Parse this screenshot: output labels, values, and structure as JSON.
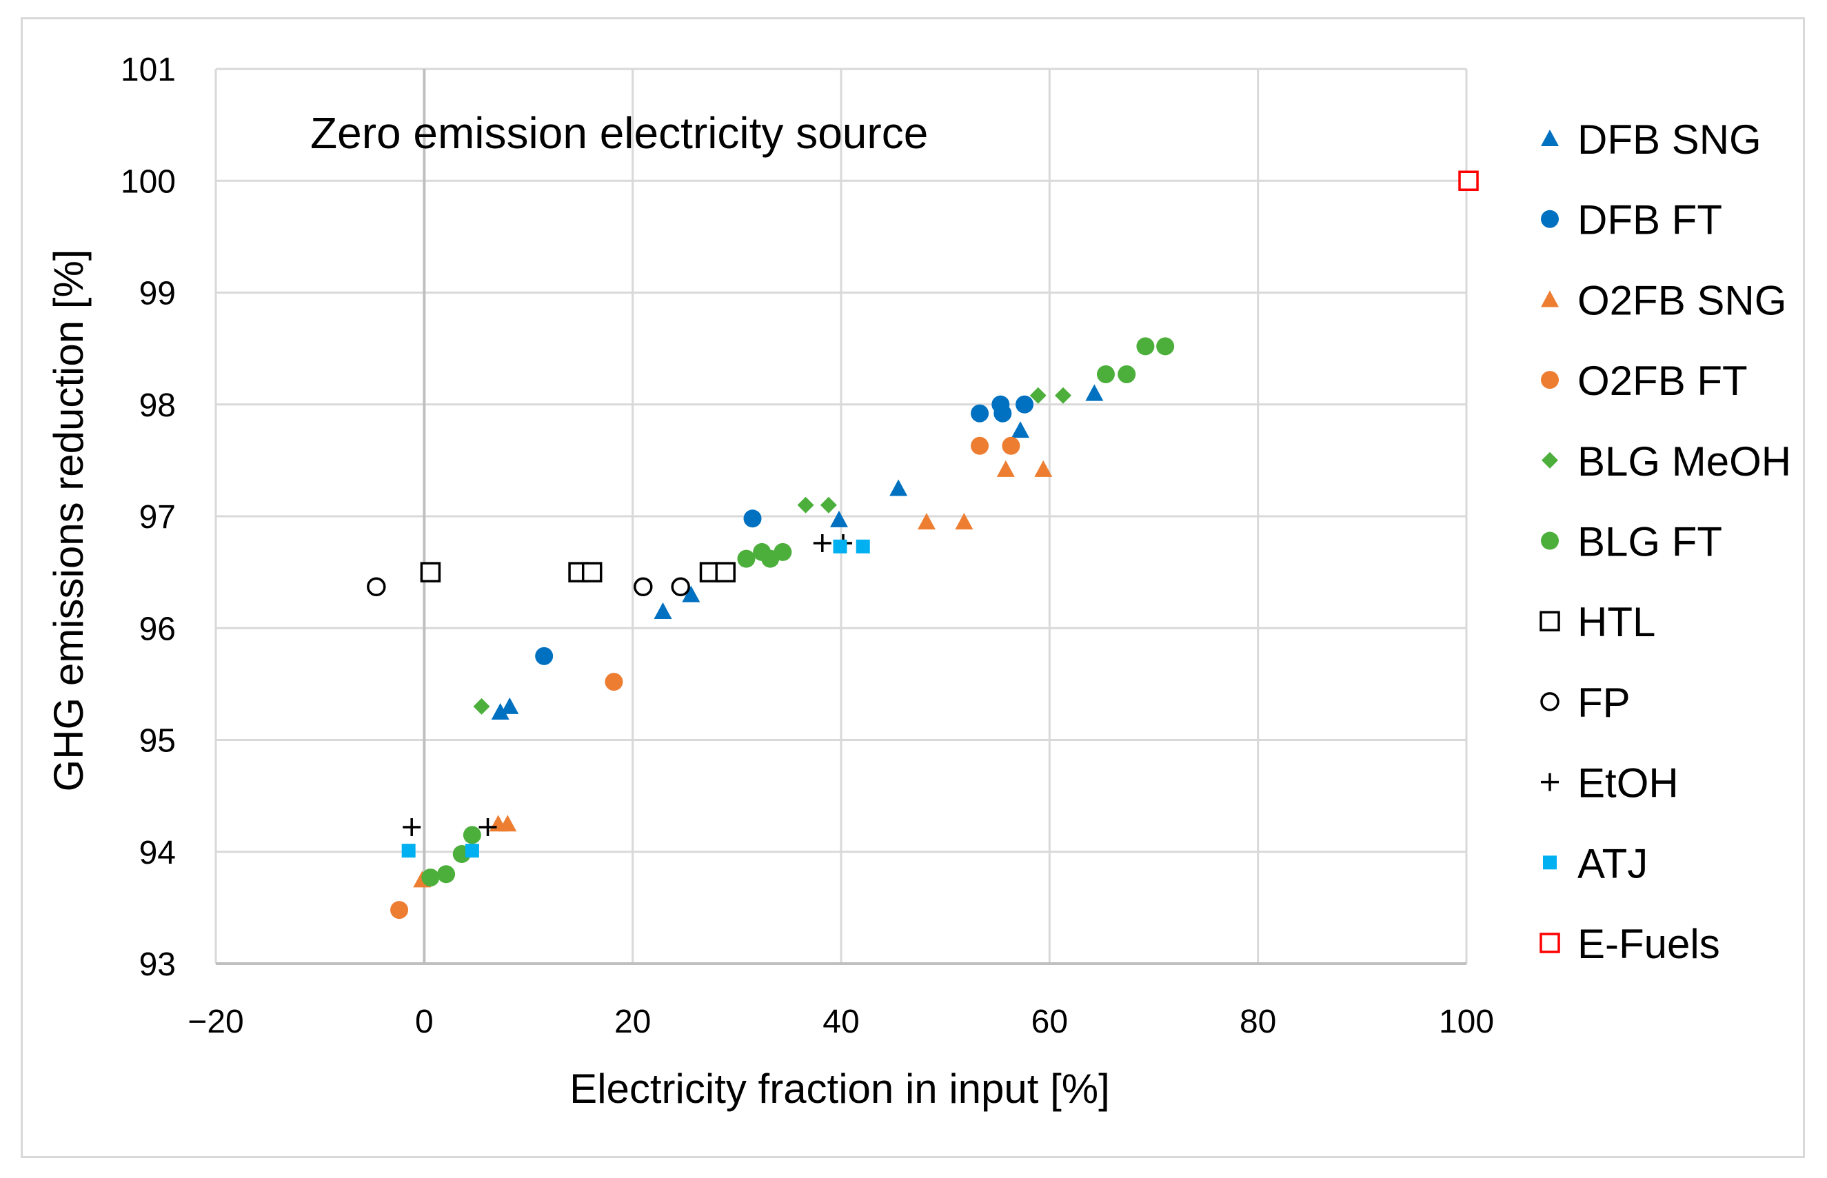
{
  "chart_data": {
    "type": "scatter",
    "title": "",
    "annotation": "Zero emission electricity source",
    "xlabel": "Electricity fraction in input [%]",
    "ylabel": "GHG emissions reduction [%]",
    "xlim": [
      -20,
      100
    ],
    "ylim": [
      93,
      101
    ],
    "xticks": [
      -20,
      0,
      20,
      40,
      60,
      80,
      100
    ],
    "xtick_labels": [
      "−20",
      "0",
      "20",
      "40",
      "60",
      "80",
      "100"
    ],
    "yticks": [
      93,
      94,
      95,
      96,
      97,
      98,
      99,
      100,
      101
    ],
    "ytick_labels": [
      "93",
      "94",
      "95",
      "96",
      "97",
      "98",
      "99",
      "100",
      "101"
    ],
    "grid": true,
    "legend_position": "right",
    "series": [
      {
        "name": "DFB SNG",
        "marker": "triangle",
        "color": "#0070C0",
        "points": [
          [
            7.3,
            95.25
          ],
          [
            8.2,
            95.3
          ],
          [
            22.9,
            96.15
          ],
          [
            25.6,
            96.3
          ],
          [
            39.8,
            96.97
          ],
          [
            45.5,
            97.25
          ],
          [
            57.2,
            97.77
          ],
          [
            64.3,
            98.1
          ]
        ]
      },
      {
        "name": "DFB FT",
        "marker": "circle",
        "color": "#0070C0",
        "points": [
          [
            11.5,
            95.75
          ],
          [
            31.5,
            96.98
          ],
          [
            53.3,
            97.92
          ],
          [
            55.3,
            98.0
          ],
          [
            55.5,
            97.92
          ],
          [
            57.6,
            98.0
          ]
        ]
      },
      {
        "name": "O2FB SNG",
        "marker": "triangle",
        "color": "#ED7D31",
        "points": [
          [
            -0.2,
            93.75
          ],
          [
            7.1,
            94.25
          ],
          [
            8.0,
            94.25
          ],
          [
            48.2,
            96.95
          ],
          [
            51.8,
            96.95
          ],
          [
            55.8,
            97.42
          ],
          [
            59.4,
            97.42
          ]
        ]
      },
      {
        "name": "O2FB FT",
        "marker": "circle",
        "color": "#ED7D31",
        "points": [
          [
            -2.4,
            93.48
          ],
          [
            18.2,
            95.52
          ],
          [
            53.3,
            97.63
          ],
          [
            56.3,
            97.63
          ]
        ]
      },
      {
        "name": "BLG MeOH",
        "marker": "diamond",
        "color": "#4CAF3B",
        "points": [
          [
            5.5,
            95.3
          ],
          [
            36.6,
            97.1
          ],
          [
            38.8,
            97.1
          ],
          [
            58.9,
            98.08
          ],
          [
            61.3,
            98.08
          ]
        ]
      },
      {
        "name": "BLG FT",
        "marker": "circle",
        "color": "#4CAF3B",
        "points": [
          [
            0.6,
            93.77
          ],
          [
            2.1,
            93.8
          ],
          [
            3.6,
            93.98
          ],
          [
            4.6,
            94.15
          ],
          [
            30.9,
            96.62
          ],
          [
            32.4,
            96.68
          ],
          [
            33.2,
            96.62
          ],
          [
            34.4,
            96.68
          ],
          [
            65.4,
            98.27
          ],
          [
            67.4,
            98.27
          ],
          [
            69.2,
            98.52
          ],
          [
            71.1,
            98.52
          ]
        ]
      },
      {
        "name": "HTL",
        "marker": "square-open",
        "color": "#000000",
        "points": [
          [
            0.6,
            96.5
          ],
          [
            14.8,
            96.5
          ],
          [
            16.1,
            96.5
          ],
          [
            27.4,
            96.5
          ],
          [
            28.9,
            96.5
          ]
        ]
      },
      {
        "name": "FP",
        "marker": "circle-open",
        "color": "#000000",
        "points": [
          [
            -4.6,
            96.37
          ],
          [
            21.0,
            96.37
          ],
          [
            24.6,
            96.37
          ]
        ]
      },
      {
        "name": "EtOH",
        "marker": "plus",
        "color": "#000000",
        "points": [
          [
            -1.2,
            94.22
          ],
          [
            6.1,
            94.22
          ],
          [
            38.2,
            96.76
          ],
          [
            40.2,
            96.76
          ]
        ]
      },
      {
        "name": "ATJ",
        "marker": "square",
        "color": "#00B0F0",
        "points": [
          [
            -1.5,
            94.01
          ],
          [
            4.6,
            94.01
          ],
          [
            39.9,
            96.73
          ],
          [
            42.1,
            96.73
          ]
        ]
      },
      {
        "name": "E-Fuels",
        "marker": "square-open",
        "color": "#FF0000",
        "points": [
          [
            100.2,
            100.0
          ]
        ]
      }
    ]
  }
}
